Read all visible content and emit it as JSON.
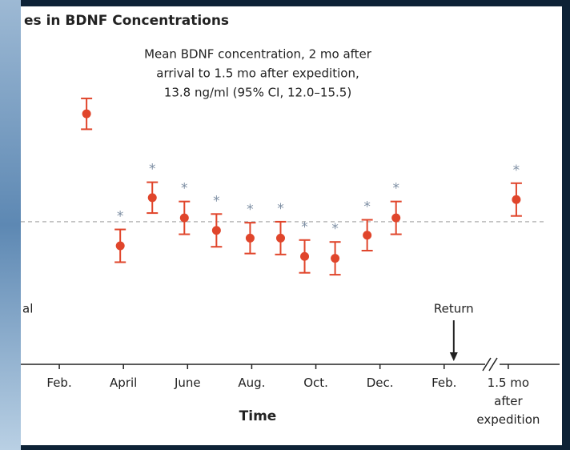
{
  "chart_data": {
    "type": "errorbar",
    "title": "es in BDNF Concentrations",
    "annotation": [
      "Mean BDNF concentration, 2 mo after",
      "arrival to 1.5 mo after expedition,",
      "13.8 ng/ml (95% CI, 12.0–15.5)"
    ],
    "x_label": "Time",
    "left_label": "al",
    "event_label": "Return",
    "event_x": 14.3,
    "reference": 13.8,
    "x": [
      2.85,
      3.9,
      4.9,
      5.9,
      6.9,
      7.95,
      8.9,
      9.65,
      10.6,
      11.6,
      12.5,
      16.25
    ],
    "values": [
      25.0,
      11.3,
      16.3,
      14.2,
      12.9,
      12.1,
      12.1,
      10.2,
      10.0,
      12.4,
      14.2,
      16.1
    ],
    "errors": [
      1.6,
      1.7,
      1.6,
      1.7,
      1.7,
      1.6,
      1.7,
      1.7,
      1.7,
      1.6,
      1.7,
      1.7
    ],
    "stars": [
      null,
      "*",
      "*",
      "*",
      "*",
      "*",
      "*",
      "*",
      "*",
      "*",
      "*",
      "*"
    ],
    "color": "#e0452b",
    "star_color": "#7d8ea3",
    "xlim": [
      0.8,
      17.6
    ],
    "ylim": [
      -1,
      30
    ],
    "xticks": [
      {
        "value": 2,
        "label": "Feb."
      },
      {
        "value": 4,
        "label": "April"
      },
      {
        "value": 6,
        "label": "June"
      },
      {
        "value": 8,
        "label": "Aug."
      },
      {
        "value": 10,
        "label": "Oct."
      },
      {
        "value": 12,
        "label": "Dec."
      },
      {
        "value": 14,
        "label": "Feb."
      },
      {
        "value": 16,
        "label": "1.5 mo after expedition"
      }
    ]
  }
}
